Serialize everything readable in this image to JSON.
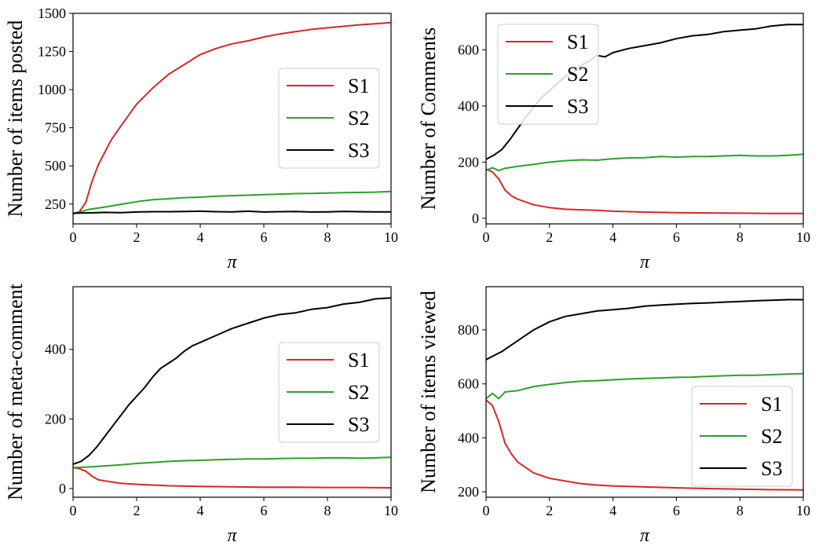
{
  "chart_data": [
    {
      "type": "line",
      "ylabel": "Number of items posted",
      "xlabel": "π",
      "xlim": [
        0,
        10
      ],
      "ylim": [
        120,
        1500
      ],
      "xticks": [
        0,
        2,
        4,
        6,
        8,
        10
      ],
      "yticks": [
        250,
        500,
        750,
        1000,
        1250,
        1500
      ],
      "legend_position": "center-right",
      "series": [
        {
          "name": "S1",
          "color": "#d62728",
          "x": [
            0,
            0.2,
            0.4,
            0.6,
            0.8,
            1.0,
            1.2,
            1.5,
            2.0,
            2.5,
            3.0,
            3.5,
            4.0,
            4.5,
            5.0,
            5.5,
            6.0,
            6.5,
            7.0,
            7.5,
            8.0,
            8.5,
            9.0,
            9.5,
            10.0
          ],
          "y": [
            185,
            200,
            260,
            400,
            510,
            590,
            670,
            760,
            905,
            1010,
            1100,
            1165,
            1230,
            1270,
            1300,
            1320,
            1345,
            1365,
            1380,
            1395,
            1405,
            1415,
            1425,
            1432,
            1440
          ]
        },
        {
          "name": "S2",
          "color": "#2ca02c",
          "x": [
            0,
            0.5,
            1.0,
            1.5,
            2.0,
            2.5,
            3.0,
            3.5,
            4.0,
            4.5,
            5.0,
            5.5,
            6.0,
            6.5,
            7.0,
            7.5,
            8.0,
            8.5,
            9.0,
            9.5,
            10.0
          ],
          "y": [
            185,
            215,
            230,
            248,
            265,
            278,
            285,
            292,
            295,
            302,
            305,
            308,
            312,
            315,
            318,
            320,
            322,
            325,
            326,
            328,
            332
          ]
        },
        {
          "name": "S3",
          "color": "#000000",
          "x": [
            0,
            0.5,
            1.0,
            1.5,
            2.0,
            2.5,
            3.0,
            3.5,
            4.0,
            4.5,
            5.0,
            5.5,
            6.0,
            6.5,
            7.0,
            7.5,
            8.0,
            8.5,
            9.0,
            9.5,
            10.0
          ],
          "y": [
            190,
            192,
            195,
            193,
            198,
            200,
            200,
            201,
            203,
            200,
            199,
            203,
            198,
            200,
            201,
            198,
            199,
            202,
            200,
            199,
            199
          ]
        }
      ]
    },
    {
      "type": "line",
      "ylabel": "Number of Comments",
      "xlabel": "π",
      "xlim": [
        0,
        10
      ],
      "ylim": [
        -20,
        730
      ],
      "xticks": [
        0,
        2,
        4,
        6,
        8,
        10
      ],
      "yticks": [
        0,
        200,
        400,
        600
      ],
      "legend_position": "upper-left",
      "series": [
        {
          "name": "S1",
          "color": "#d62728",
          "x": [
            0,
            0.2,
            0.4,
            0.6,
            0.8,
            1.0,
            1.5,
            2.0,
            2.5,
            3.0,
            3.5,
            4.0,
            5.0,
            6.0,
            7.0,
            8.0,
            9.0,
            10.0
          ],
          "y": [
            175,
            165,
            140,
            100,
            80,
            68,
            48,
            38,
            32,
            30,
            28,
            25,
            22,
            20,
            19,
            18,
            17,
            17
          ]
        },
        {
          "name": "S2",
          "color": "#2ca02c",
          "x": [
            0,
            0.2,
            0.4,
            0.6,
            1.0,
            1.5,
            2.0,
            2.5,
            3.0,
            3.5,
            4.0,
            4.5,
            5.0,
            5.5,
            6.0,
            6.5,
            7.0,
            7.5,
            8.0,
            8.5,
            9.0,
            9.5,
            10.0
          ],
          "y": [
            170,
            180,
            170,
            178,
            185,
            192,
            200,
            205,
            208,
            207,
            212,
            215,
            216,
            220,
            218,
            220,
            220,
            222,
            224,
            222,
            222,
            224,
            228
          ]
        },
        {
          "name": "S3",
          "color": "#000000",
          "x": [
            0,
            0.25,
            0.5,
            0.75,
            1.0,
            1.25,
            1.5,
            1.75,
            2.0,
            2.25,
            2.5,
            2.75,
            3.0,
            3.25,
            3.5,
            3.75,
            4.0,
            4.5,
            5.0,
            5.5,
            6.0,
            6.5,
            7.0,
            7.5,
            8.0,
            8.5,
            9.0,
            9.5,
            10.0
          ],
          "y": [
            210,
            225,
            245,
            280,
            320,
            360,
            395,
            430,
            455,
            480,
            505,
            520,
            545,
            560,
            580,
            575,
            590,
            605,
            615,
            625,
            640,
            650,
            655,
            665,
            670,
            675,
            685,
            690,
            690
          ]
        }
      ]
    },
    {
      "type": "line",
      "ylabel": "Number of meta-comment",
      "xlabel": "π",
      "xlim": [
        0,
        10
      ],
      "ylim": [
        -25,
        580
      ],
      "xticks": [
        0,
        2,
        4,
        6,
        8,
        10
      ],
      "yticks": [
        0,
        200,
        400
      ],
      "legend_position": "center-right",
      "series": [
        {
          "name": "S1",
          "color": "#d62728",
          "x": [
            0,
            0.2,
            0.4,
            0.6,
            0.8,
            1.0,
            1.5,
            2.0,
            2.5,
            3.0,
            4.0,
            5.0,
            6.0,
            7.0,
            8.0,
            9.0,
            10.0
          ],
          "y": [
            60,
            57,
            50,
            35,
            25,
            22,
            15,
            12,
            10,
            8,
            6,
            5,
            4,
            4,
            3,
            3,
            2
          ]
        },
        {
          "name": "S2",
          "color": "#2ca02c",
          "x": [
            0,
            0.5,
            1.0,
            1.5,
            2.0,
            2.5,
            3.0,
            3.5,
            4.0,
            4.5,
            5.0,
            5.5,
            6.0,
            6.5,
            7.0,
            7.5,
            8.0,
            8.5,
            9.0,
            9.5,
            10.0
          ],
          "y": [
            60,
            62,
            65,
            68,
            72,
            75,
            78,
            80,
            81,
            83,
            84,
            85,
            85,
            86,
            87,
            87,
            88,
            88,
            87,
            88,
            90
          ]
        },
        {
          "name": "S3",
          "color": "#000000",
          "x": [
            0,
            0.25,
            0.5,
            0.75,
            1.0,
            1.25,
            1.5,
            1.75,
            2.0,
            2.25,
            2.5,
            2.75,
            3.0,
            3.25,
            3.5,
            3.75,
            4.0,
            4.5,
            5.0,
            5.5,
            6.0,
            6.5,
            7.0,
            7.5,
            8.0,
            8.5,
            9.0,
            9.5,
            10.0
          ],
          "y": [
            70,
            78,
            95,
            120,
            150,
            180,
            210,
            240,
            265,
            290,
            320,
            345,
            360,
            375,
            395,
            410,
            420,
            440,
            460,
            475,
            490,
            500,
            505,
            515,
            520,
            530,
            535,
            545,
            548
          ]
        }
      ]
    },
    {
      "type": "line",
      "ylabel": "Number of items viewed",
      "xlabel": "π",
      "xlim": [
        0,
        10
      ],
      "ylim": [
        180,
        960
      ],
      "xticks": [
        0,
        2,
        4,
        6,
        8,
        10
      ],
      "yticks": [
        200,
        400,
        600,
        800
      ],
      "legend_position": "lower-right",
      "series": [
        {
          "name": "S1",
          "color": "#d62728",
          "x": [
            0,
            0.2,
            0.4,
            0.6,
            0.8,
            1.0,
            1.25,
            1.5,
            1.75,
            2.0,
            2.5,
            3.0,
            3.5,
            4.0,
            5.0,
            6.0,
            7.0,
            8.0,
            9.0,
            10.0
          ],
          "y": [
            540,
            520,
            460,
            380,
            340,
            310,
            290,
            270,
            260,
            250,
            240,
            230,
            225,
            222,
            218,
            215,
            212,
            210,
            208,
            207
          ]
        },
        {
          "name": "S2",
          "color": "#2ca02c",
          "x": [
            0,
            0.2,
            0.4,
            0.6,
            1.0,
            1.5,
            2.0,
            2.5,
            3.0,
            3.5,
            4.0,
            4.5,
            5.0,
            5.5,
            6.0,
            6.5,
            7.0,
            7.5,
            8.0,
            8.5,
            9.0,
            9.5,
            10.0
          ],
          "y": [
            545,
            565,
            545,
            570,
            575,
            590,
            598,
            605,
            610,
            612,
            615,
            618,
            620,
            622,
            624,
            625,
            628,
            630,
            632,
            632,
            634,
            636,
            638
          ]
        },
        {
          "name": "S3",
          "color": "#000000",
          "x": [
            0,
            0.25,
            0.5,
            0.75,
            1.0,
            1.25,
            1.5,
            1.75,
            2.0,
            2.5,
            3.0,
            3.5,
            4.0,
            4.5,
            5.0,
            5.5,
            6.0,
            6.5,
            7.0,
            7.5,
            8.0,
            8.5,
            9.0,
            9.5,
            10.0
          ],
          "y": [
            690,
            705,
            720,
            740,
            760,
            780,
            800,
            815,
            830,
            850,
            860,
            870,
            875,
            880,
            888,
            892,
            895,
            898,
            900,
            903,
            905,
            908,
            910,
            912,
            912
          ]
        }
      ]
    }
  ]
}
